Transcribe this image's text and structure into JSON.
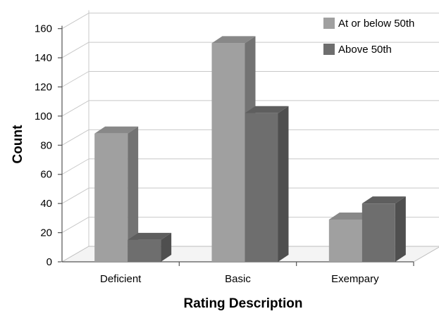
{
  "chart_data": {
    "type": "bar",
    "style": "3d-clustered-column",
    "categories": [
      "Deficient",
      "Basic",
      "Exempary"
    ],
    "series": [
      {
        "name": "At or below 50th",
        "values": [
          88,
          150,
          29
        ],
        "color": "#a0a0a0"
      },
      {
        "name": "Above 50th",
        "values": [
          15,
          102,
          40
        ],
        "color": "#6e6e6e"
      }
    ],
    "ylim": [
      0,
      160
    ],
    "yticks": [
      0,
      20,
      40,
      60,
      80,
      100,
      120,
      140,
      160
    ],
    "xlabel": "Rating Description",
    "ylabel": "Count",
    "grid": true,
    "legend_position": "top-right"
  }
}
